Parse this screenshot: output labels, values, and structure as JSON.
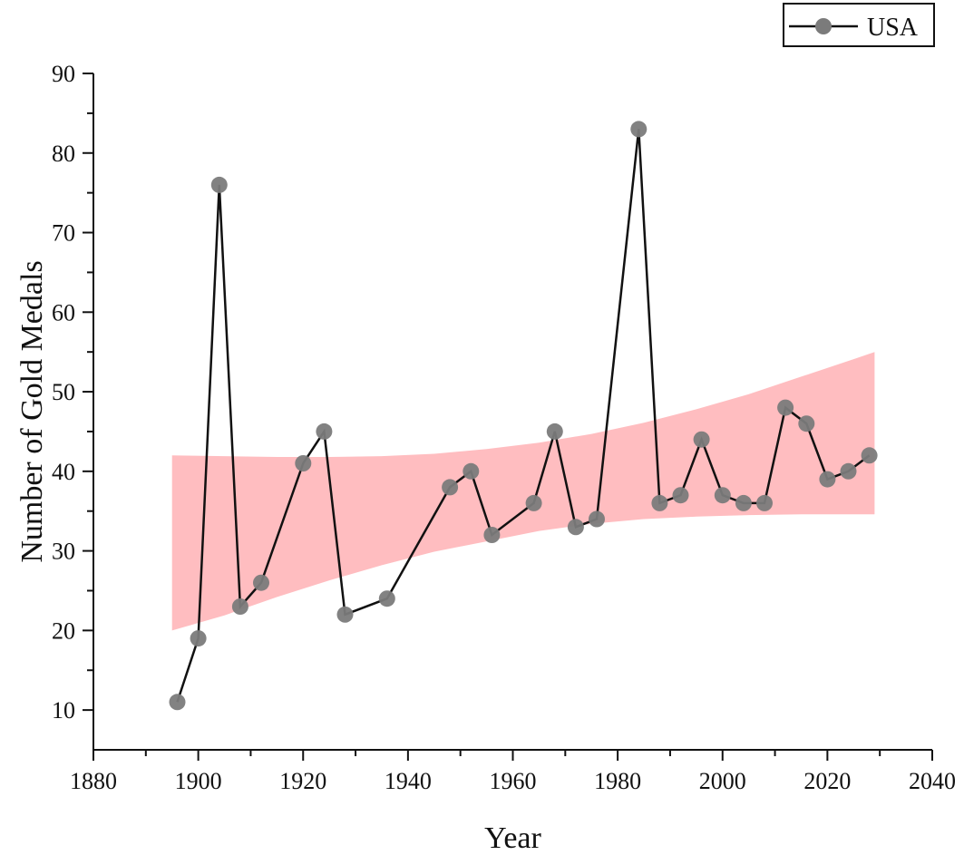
{
  "chart_data": {
    "type": "line",
    "xlabel": "Year",
    "ylabel": "Number of Gold Medals",
    "xlim": [
      1880,
      2040
    ],
    "ylim": [
      5,
      90
    ],
    "xticks": [
      1880,
      1900,
      1920,
      1940,
      1960,
      1980,
      2000,
      2020,
      2040
    ],
    "yticks": [
      10,
      20,
      30,
      40,
      50,
      60,
      70,
      80,
      90
    ],
    "legend": {
      "position": "top-right",
      "entries": [
        "USA"
      ]
    },
    "grid": false,
    "series": [
      {
        "name": "USA",
        "x": [
          1896,
          1900,
          1904,
          1908,
          1912,
          1920,
          1924,
          1928,
          1936,
          1948,
          1952,
          1956,
          1964,
          1968,
          1972,
          1976,
          1984,
          1988,
          1992,
          1996,
          2000,
          2004,
          2008,
          2012,
          2016,
          2020,
          2024,
          2028
        ],
        "y": [
          11,
          19,
          76,
          23,
          26,
          41,
          45,
          22,
          24,
          38,
          40,
          32,
          36,
          45,
          33,
          34,
          83,
          36,
          37,
          44,
          37,
          36,
          36,
          48,
          46,
          39,
          40,
          42
        ],
        "line_color": "#111111",
        "marker_color": "#7b7b7b"
      }
    ],
    "band": {
      "color": "#ffbdc0",
      "x": [
        1895,
        1905,
        1915,
        1925,
        1935,
        1945,
        1955,
        1965,
        1975,
        1985,
        1995,
        2005,
        2015,
        2025,
        2029
      ],
      "upper": [
        42,
        41.9,
        41.8,
        41.8,
        41.9,
        42.2,
        42.8,
        43.6,
        44.7,
        46.1,
        47.8,
        49.7,
        51.9,
        54.1,
        55
      ],
      "lower": [
        20,
        21.9,
        24.2,
        26.3,
        28.2,
        29.9,
        31.2,
        32.5,
        33.4,
        34.0,
        34.3,
        34.5,
        34.6,
        34.6,
        34.6
      ]
    }
  }
}
